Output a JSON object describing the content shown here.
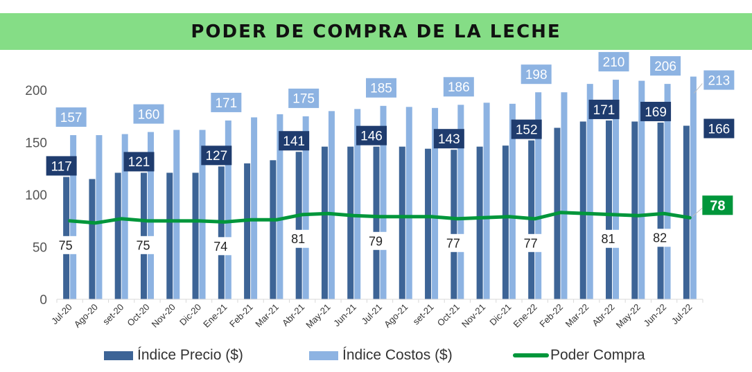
{
  "title": "PODER DE COMPRA DE LA LECHE",
  "colors": {
    "title_band": "#85dd86",
    "precio": "#3d6496",
    "costos": "#8db3e2",
    "poder": "#00963b",
    "precio_label": "#1f3c6e",
    "costos_label": "#8db3e2",
    "axis_text": "#555555",
    "grid": "#d9d9d9"
  },
  "legend": {
    "precio": "Índice Precio ($)",
    "costos": "Índice Costos ($)",
    "poder": "Poder Compra"
  },
  "chart_data": {
    "type": "bar",
    "title": "PODER DE COMPRA DE LA LECHE",
    "xlabel": "",
    "ylabel": "",
    "ylim": [
      0,
      220
    ],
    "yticks": [
      0,
      50,
      100,
      150,
      200
    ],
    "grid": false,
    "legend_position": "bottom",
    "categories": [
      "Jul-20",
      "Ago-20",
      "set-20",
      "Oct-20",
      "Nov-20",
      "Dic-20",
      "Ene-21",
      "Feb-21",
      "Mar-21",
      "Abr-21",
      "May-21",
      "Jun-21",
      "Jul-21",
      "Ago-21",
      "set-21",
      "Oct-21",
      "Nov-21",
      "Dic-21",
      "Ene-22",
      "Feb-22",
      "Mar-22",
      "Abr-22",
      "May-22",
      "Jun-22",
      "Jul-22"
    ],
    "series": [
      {
        "name": "Índice Precio ($)",
        "type": "bar",
        "values": [
          117,
          115,
          121,
          121,
          121,
          121,
          127,
          130,
          133,
          141,
          146,
          146,
          146,
          146,
          144,
          143,
          146,
          147,
          152,
          164,
          170,
          171,
          170,
          169,
          166
        ]
      },
      {
        "name": "Índice Costos ($)",
        "type": "bar",
        "values": [
          157,
          157,
          158,
          160,
          162,
          162,
          171,
          174,
          177,
          175,
          180,
          182,
          185,
          184,
          183,
          186,
          188,
          187,
          198,
          198,
          206,
          210,
          209,
          206,
          213
        ]
      },
      {
        "name": "Poder Compra",
        "type": "line",
        "values": [
          75,
          73,
          77,
          75,
          75,
          75,
          74,
          76,
          76,
          81,
          82,
          80,
          79,
          79,
          79,
          77,
          78,
          79,
          77,
          83,
          82,
          81,
          80,
          82,
          78
        ]
      }
    ],
    "data_labels": {
      "precio": {
        "0": "117",
        "3": "121",
        "6": "127",
        "9": "141",
        "12": "146",
        "15": "143",
        "18": "152",
        "21": "171",
        "23": "169",
        "24": "166"
      },
      "costos": {
        "0": "157",
        "3": "160",
        "6": "171",
        "9": "175",
        "12": "185",
        "15": "186",
        "18": "198",
        "21": "210",
        "23": "206",
        "24": "213"
      },
      "poder": {
        "0": "75",
        "3": "75",
        "6": "74",
        "9": "81",
        "12": "79",
        "15": "77",
        "18": "77",
        "21": "81",
        "23": "82",
        "24": "78"
      }
    }
  }
}
